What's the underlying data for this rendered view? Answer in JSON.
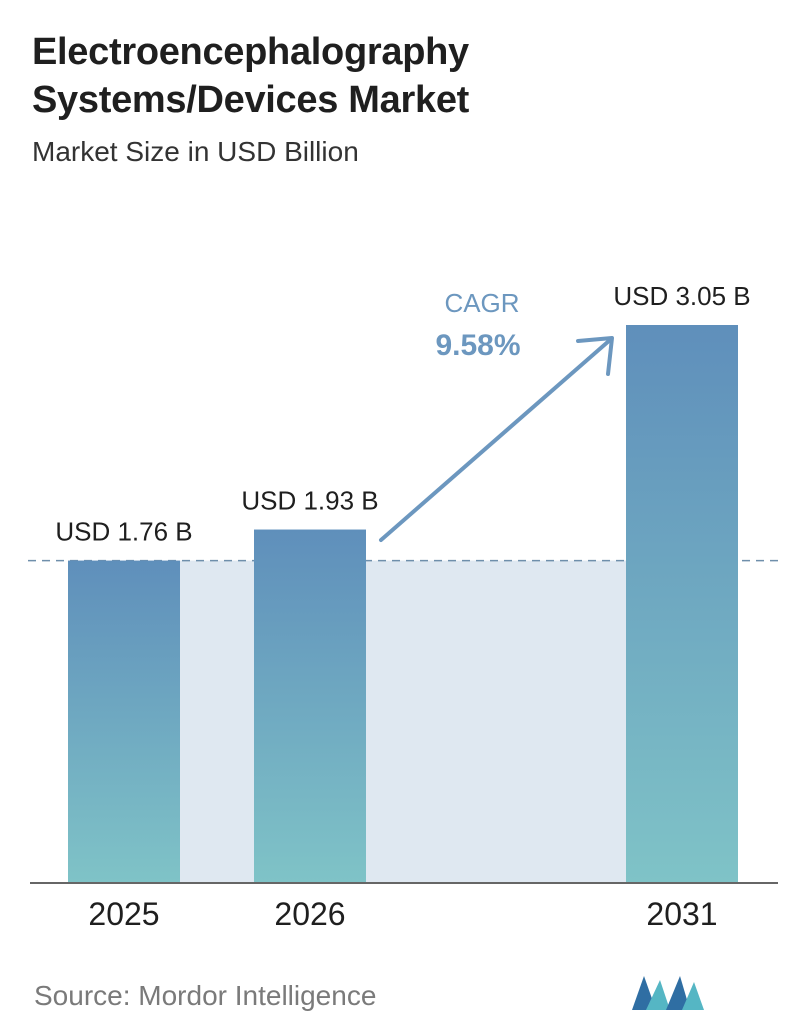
{
  "header": {
    "title_line1": "Electroencephalography",
    "title_line2": "Systems/Devices Market",
    "subtitle": "Market Size in USD Billion"
  },
  "chart_data": {
    "type": "bar",
    "categories": [
      "2025",
      "2026",
      "2031"
    ],
    "values": [
      1.76,
      1.93,
      3.05
    ],
    "value_labels": [
      "USD 1.76 B",
      "USD 1.93 B",
      "USD 3.05 B"
    ],
    "title": "Electroencephalography Systems/Devices Market",
    "subtitle": "Market Size in USD Billion",
    "xlabel": "",
    "ylabel": "",
    "ylim": [
      0,
      3.05
    ],
    "grid": false,
    "reference_line": 1.76,
    "annotation": {
      "label": "CAGR",
      "value": "9.58%"
    },
    "colors": {
      "bar_top": "#5f8fbb",
      "bar_bottom": "#7fc3c7",
      "band": "#dfe8f1",
      "arrow": "#6c97bf",
      "axis": "#666666"
    }
  },
  "footer": {
    "source": "Source:  Mordor Intelligence",
    "logo_icon": "mordor-intelligence-logo-icon"
  }
}
